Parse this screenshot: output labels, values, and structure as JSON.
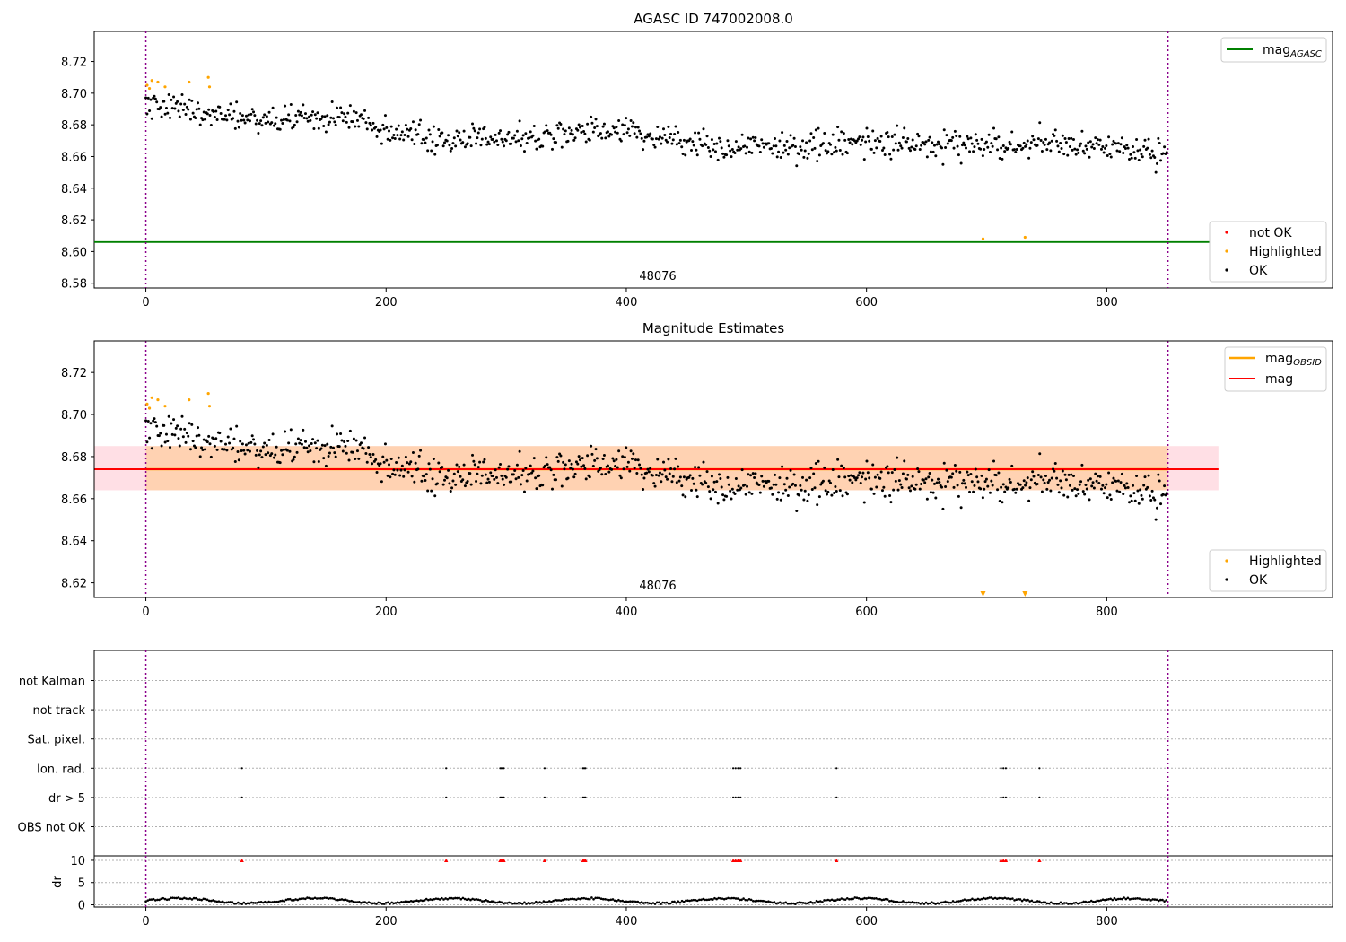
{
  "chart_data": [
    {
      "type": "scatter",
      "title": "AGASC ID 747002008.0",
      "xlim": [
        -43,
        988
      ],
      "ylim": [
        8.577,
        8.739
      ],
      "xticks": [
        0,
        200,
        400,
        600,
        800
      ],
      "yticks": [
        8.58,
        8.6,
        8.62,
        8.64,
        8.66,
        8.68,
        8.7,
        8.72
      ],
      "ytick_labels": [
        "8.58",
        "8.60",
        "8.62",
        "8.64",
        "8.66",
        "8.68",
        "8.70",
        "8.72"
      ],
      "obsid_label": "48076",
      "obsid_bounds": [
        0,
        851
      ],
      "mag_agasc": 8.606,
      "legend_upper": [
        {
          "label": "mag",
          "subscript": "AGASC",
          "color": "#008000"
        }
      ],
      "legend_lower": [
        {
          "label": "not OK",
          "color": "#ff0000"
        },
        {
          "label": "Highlighted",
          "color": "#ffa500"
        },
        {
          "label": "OK",
          "color": "#000000"
        }
      ],
      "series": [
        {
          "name": "Highlighted",
          "color": "#ffa500",
          "x": [
            1,
            3,
            5,
            10,
            16,
            36,
            52,
            53,
            697,
            732
          ],
          "y": [
            8.705,
            8.703,
            8.708,
            8.707,
            8.704,
            8.707,
            8.71,
            8.704,
            8.608,
            8.609
          ]
        },
        {
          "name": "OK",
          "color": "#000000",
          "count": 845,
          "segments": [
            [
              0,
              8.693
            ],
            [
              100,
              8.683
            ],
            [
              180,
              8.685
            ],
            [
              200,
              8.673
            ],
            [
              300,
              8.671
            ],
            [
              400,
              8.678
            ],
            [
              450,
              8.668
            ],
            [
              500,
              8.667
            ],
            [
              600,
              8.668
            ],
            [
              700,
              8.668
            ],
            [
              800,
              8.666
            ],
            [
              851,
              8.662
            ]
          ]
        }
      ]
    },
    {
      "type": "scatter",
      "title": "Magnitude Estimates",
      "xlim": [
        -43,
        988
      ],
      "ylim": [
        8.613,
        8.735
      ],
      "xticks": [
        0,
        200,
        400,
        600,
        800
      ],
      "yticks": [
        8.62,
        8.64,
        8.66,
        8.68,
        8.7,
        8.72
      ],
      "ytick_labels": [
        "8.62",
        "8.64",
        "8.66",
        "8.68",
        "8.70",
        "8.72"
      ],
      "obsid_label": "48076",
      "mag": 8.674,
      "mag_band": [
        8.664,
        8.685
      ],
      "mag_obsid": 8.674,
      "mag_obsid_band": [
        8.664,
        8.685
      ],
      "band_x": [
        -43,
        893
      ],
      "off_scale_markers_x": [
        697,
        732
      ],
      "legend_upper": [
        {
          "label": "mag",
          "subscript": "OBSID",
          "color": "#ffa500"
        },
        {
          "label": "mag",
          "subscript": "",
          "color": "#ff0000"
        }
      ],
      "legend_lower": [
        {
          "label": "Highlighted",
          "color": "#ffa500"
        },
        {
          "label": "OK",
          "color": "#000000"
        }
      ]
    },
    {
      "type": "scatter",
      "title": "",
      "xlim": [
        -43,
        988
      ],
      "flag_rows": [
        "not Kalman",
        "not track",
        "Sat. pixel.",
        "Ion. rad.",
        "dr > 5",
        "OBS not OK"
      ],
      "flag_x": [
        80,
        250,
        295,
        296,
        297,
        298,
        332,
        364,
        365,
        366,
        489,
        491,
        493,
        495,
        575,
        712,
        714,
        716,
        744
      ],
      "flag_rows_marked": [
        "Ion. rad.",
        "dr > 5"
      ],
      "dr_ylabel": "dr",
      "dr_ylim": [
        -0.5,
        11
      ],
      "dr_yticks": [
        0,
        5,
        10
      ],
      "dr_ytick_labels": [
        "0",
        "5",
        "10"
      ],
      "dr_clipped_at": 10,
      "dr_typical_range": [
        0.2,
        1.6
      ],
      "xticks": [
        0,
        200,
        400,
        600,
        800
      ]
    }
  ]
}
